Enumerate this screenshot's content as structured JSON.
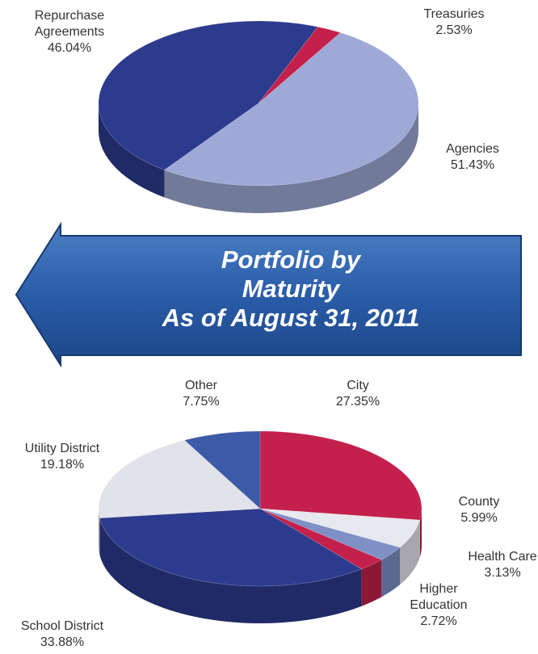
{
  "chart_data": [
    {
      "type": "pie",
      "categories": [
        "Repurchase Agreements",
        "Treasuries",
        "Agencies"
      ],
      "values": [
        46.04,
        2.53,
        51.43
      ],
      "value_labels": [
        "46.04%",
        "2.53%",
        "51.43%"
      ],
      "colors": [
        "#2d3b8e",
        "#c3214b",
        "#9ea9d6"
      ]
    },
    {
      "type": "pie",
      "categories": [
        "City",
        "County",
        "Health Care",
        "Higher Education",
        "School District",
        "Utility District",
        "Other"
      ],
      "values": [
        27.35,
        5.99,
        3.13,
        2.72,
        33.88,
        19.18,
        7.75
      ],
      "value_labels": [
        "27.35%",
        "5.99%",
        "3.13%",
        "2.72%",
        "33.88%",
        "19.18%",
        "7.75%"
      ],
      "colors": [
        "#c3214b",
        "#e8e8f0",
        "#7f90c6",
        "#c3214b",
        "#2d3b8e",
        "#e2e2ea",
        "#3d5aa8"
      ]
    }
  ],
  "banner": {
    "lines": [
      "Portfolio by",
      "Maturity",
      "As of August 31, 2011"
    ]
  }
}
